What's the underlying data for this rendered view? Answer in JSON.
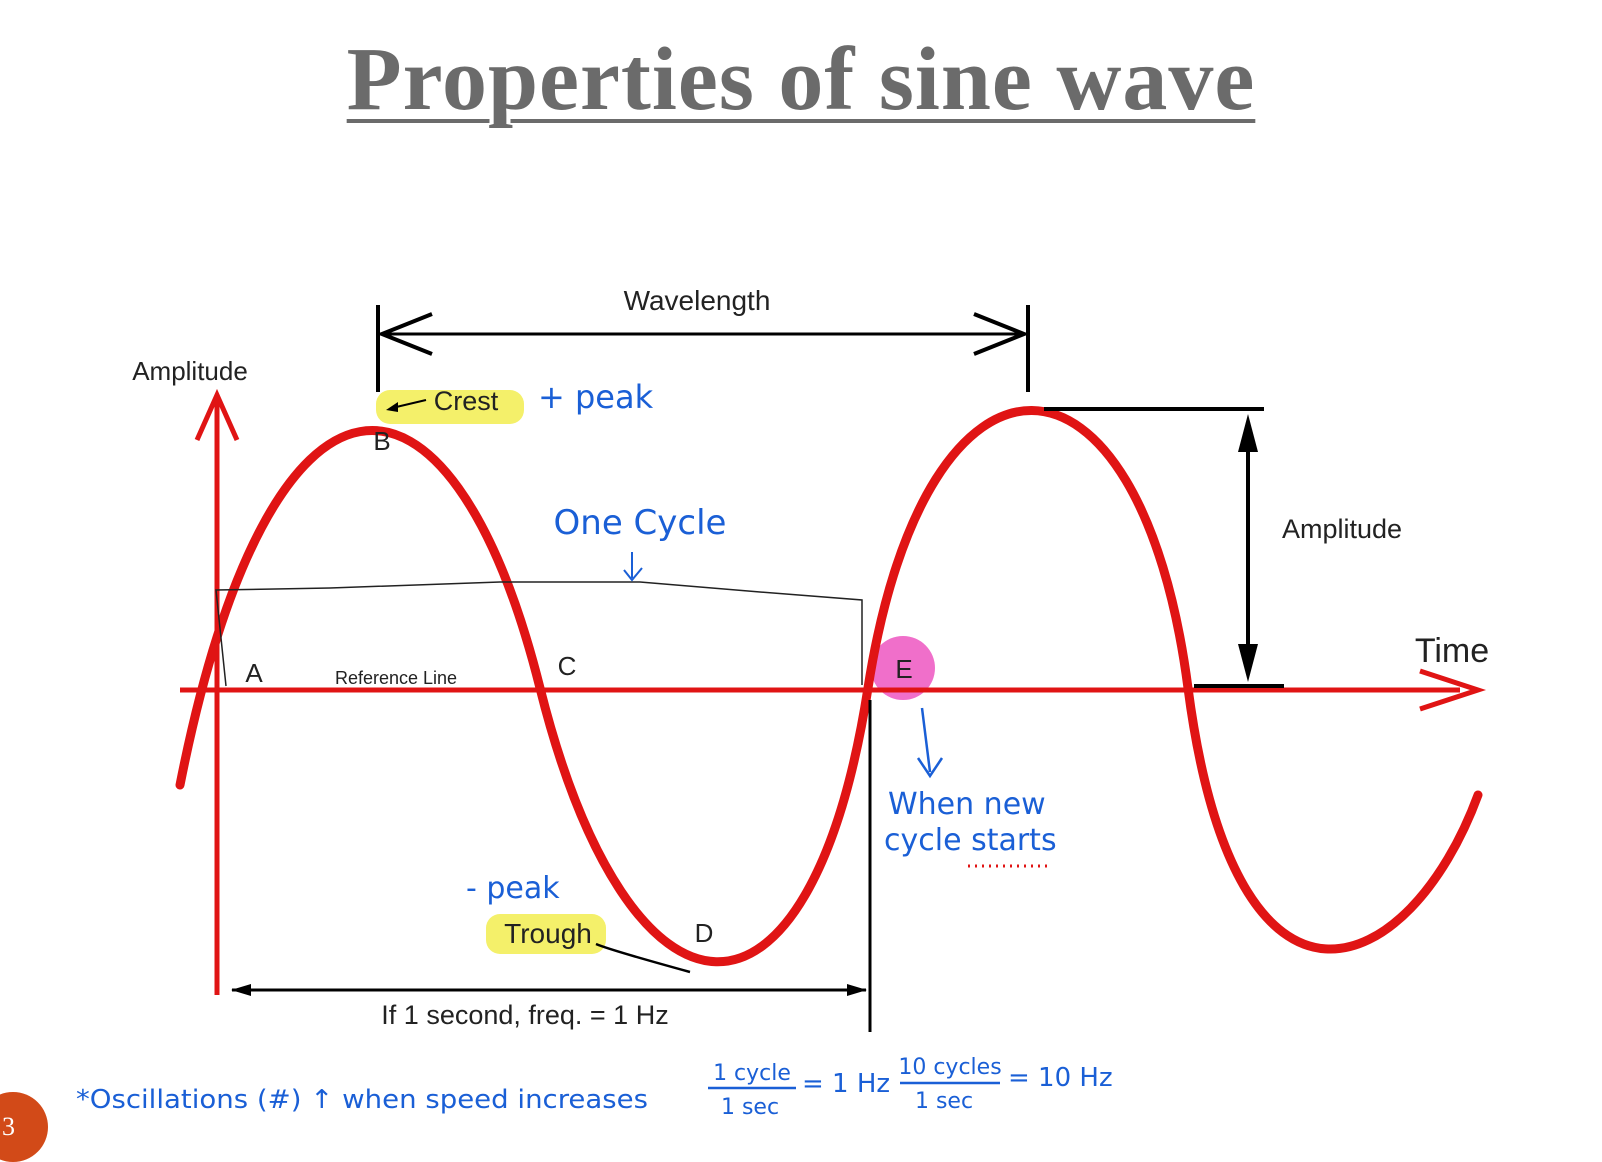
{
  "title": "Properties of sine wave",
  "slide_number": "3",
  "labels": {
    "wavelength": "Wavelength",
    "amplitude_axis": "Amplitude",
    "amplitude_measure": "Amplitude",
    "time_axis": "Time",
    "crest": "Crest",
    "trough": "Trough",
    "reference_line": "Reference Line",
    "point_a": "A",
    "point_b": "B",
    "point_c": "C",
    "point_d": "D",
    "point_e": "E",
    "frequency_note": "If 1 second, freq. = 1 Hz"
  },
  "handwriting": {
    "plus_peak": "+ peak",
    "minus_peak": "- peak",
    "one_cycle": "One Cycle",
    "new_cycle_line1": "When new",
    "new_cycle_line2": "cycle starts",
    "oscillations": "*Oscillations (#) ↑ when speed increases",
    "frac1_num": "1 cycle",
    "frac1_den": "1 sec",
    "frac1_result": "= 1 Hz",
    "frac2_num": "10 cycles",
    "frac2_den": "1 sec",
    "frac2_result": "= 10 Hz"
  },
  "colors": {
    "wave": "#e01414",
    "handwriting": "#1a5fd6",
    "highlight_yellow": "#f4f06a",
    "highlight_pink": "#ee5fc4",
    "title": "#6b6b6b",
    "slide_badge": "#d24a18"
  }
}
